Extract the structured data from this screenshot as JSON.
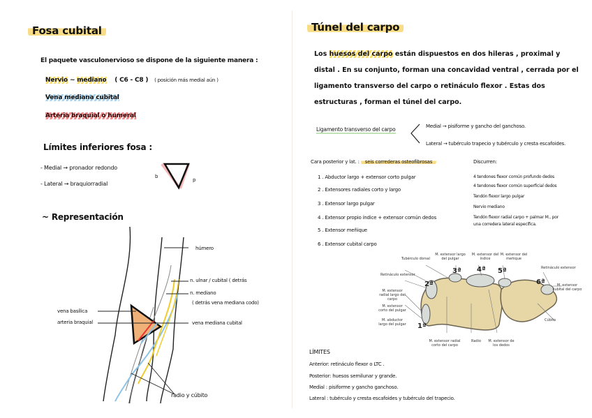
{
  "left": {
    "title": "Fosa cubital",
    "intro": "El paquete vasculonervioso se dispone de la siguiente manera :",
    "nerve_label": "Nervio",
    "nerve_sep": "~",
    "nerve_name": "mediano",
    "nerve_roots": "( C6 - C8 )",
    "nerve_note": "( posición más medial aún )",
    "vein": "Vena mediana cubital",
    "artery": "Arteria braquial o humeral",
    "limits_title": "Límites inferiores fosa :",
    "limits": [
      "- Medial  →  pronador redondo",
      "- Lateral  →  braquiorradial"
    ],
    "triangle_left": "b",
    "triangle_right": "p",
    "repr_title": "~ Representación",
    "diagram_labels": {
      "humero": "húmero",
      "ulnar": "n. ulnar / cubital ( detrás",
      "mediano": "n. mediano",
      "mediano_note": "( detrás vena mediana codo)",
      "basilica": "vena basílica",
      "arteria": "arteria braquial",
      "vena_mediana": "vena mediana cubital",
      "radio": "radio y cúbito"
    }
  },
  "right": {
    "title": "Túnel del carpo",
    "paragraph_pre": "Los",
    "paragraph_hl": "huesos del carpo",
    "paragraph_post": "están dispuestos en dos hileras , proximal y distal . En su conjunto, forman una concavidad ventral , cerrada por el ligamento transverso del carpo o retináculo flexor . Estas dos estructuras , forman el túnel del carpo.",
    "ligament": "Ligamento transverso del carpo",
    "ligament_medial": "Medial → pisiforme y gancho del ganchoso.",
    "ligament_lateral": "Lateral → tubérculo trapecio y tubérculo y cresta escafoides.",
    "posterior_label": "Cara posterior y lat. :",
    "posterior_hl": "seis correderas osteofibrosas",
    "correderas": [
      "1 .  Abductor largo + extensor corto pulgar",
      "2 .  Extensores radiales corto y largo",
      "3 .  Extensor largo pulgar",
      "4 .  Extensor propio índice + extensor común dedos",
      "5 .  Extensor meñique",
      "6 .  Extensor cubital carpo"
    ],
    "discurren_title": "Discurren:",
    "discurren": [
      "4 tendones flexor común profundo dedos",
      "4 tendones flexor común superficial dedos",
      "Tendón flexor largo pulgar",
      "Nervio mediano",
      "Tendón flexor radial carpo + palmar M., por",
      "una corredera lateral específica."
    ],
    "figure": {
      "compartments": [
        "1ª",
        "2ª",
        "3ª",
        "4ª",
        "5ª",
        "6ª"
      ],
      "labels": {
        "tuberculo": "Tubérculo dorsal",
        "ret_left": "Retináculo extensor",
        "ret_right": "Retináculo extensor",
        "ext_largo_pulgar": "M. extensor largo del pulgar",
        "ext_indice": "M. extensor del índice",
        "ext_menique": "M. extensor del meñique",
        "ext_radial_largo": "M. extensor radial largo del carpo",
        "ext_corto_pulgar": "M. extensor corto del pulgar",
        "abd_largo_pulgar": "M. abductor largo del pulgar",
        "ext_cubital": "M. extensor cubital del carpo",
        "cubito": "Cúbito",
        "ext_radial_corto": "M. extensor radial corto del carpo",
        "radio": "Radio",
        "ext_dedos": "M. extensor de los dedos"
      }
    },
    "limits_title": "LÍMITES",
    "limits": [
      "Anterior: retináculo flexor o LTC .",
      "Posterior: huesos semilunar y grande.",
      "Medial : pisiforme y gancho ganchoso.",
      "Lateral : tubérculo y cresta escafoides y tubérculo del trapecio."
    ]
  }
}
